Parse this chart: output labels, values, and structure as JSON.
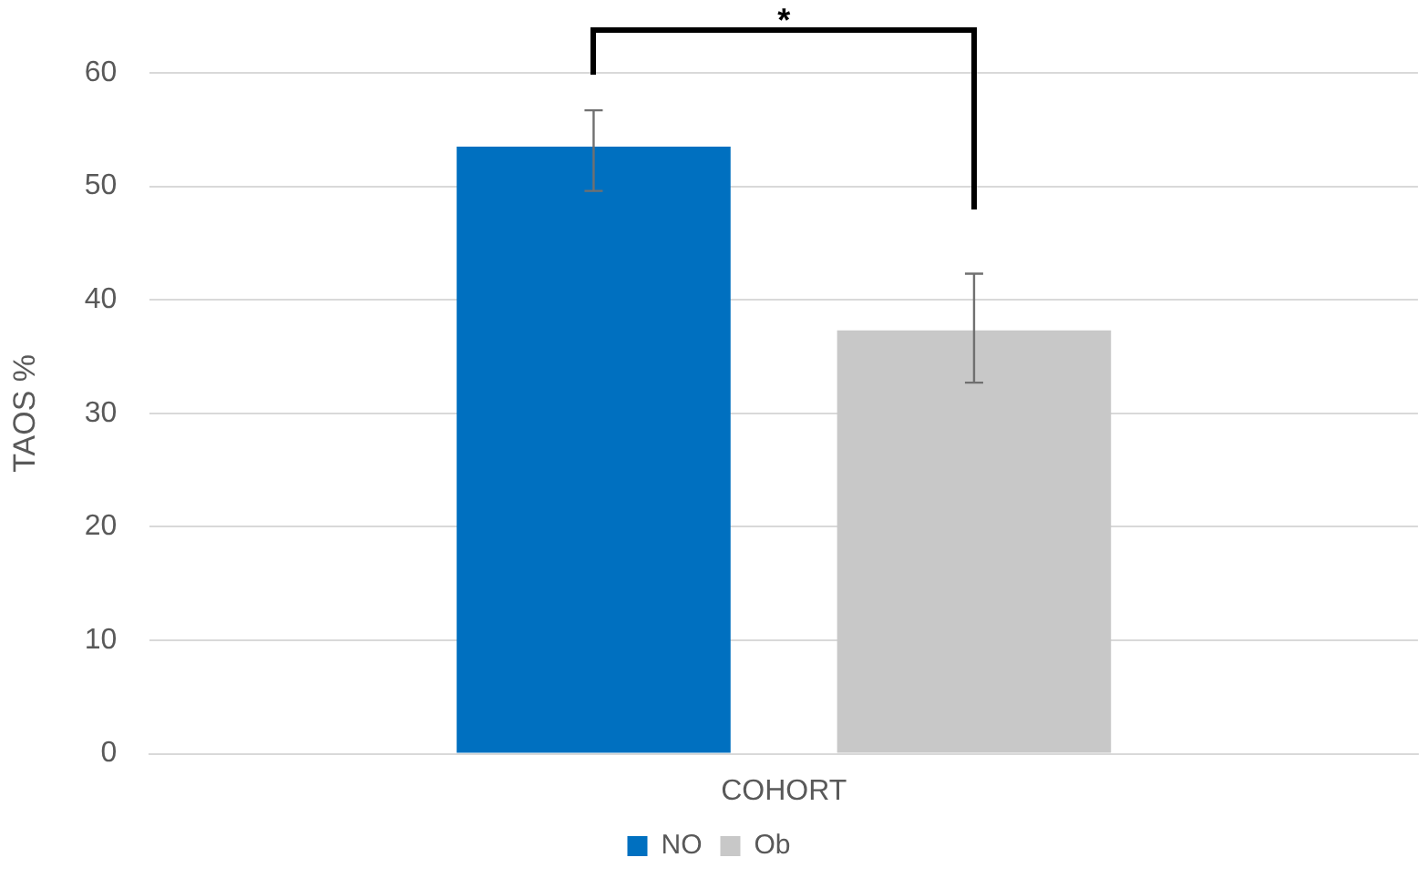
{
  "chart_data": {
    "type": "bar",
    "ylabel": "TAOS %",
    "categories": [
      "COHORT"
    ],
    "series": [
      {
        "name": "NO",
        "color": "#0070c0",
        "values": [
          53.5
        ],
        "errors": [
          [
            49.6,
            56.7
          ]
        ]
      },
      {
        "name": "Ob",
        "color": "#c8c8c8",
        "values": [
          37.3
        ],
        "errors": [
          [
            32.7,
            42.3
          ]
        ]
      }
    ],
    "ylim": [
      0,
      60
    ],
    "yticks": [
      0,
      10,
      20,
      30,
      40,
      50,
      60
    ],
    "grid": "y",
    "legend": "bottom",
    "annotations": [
      "*"
    ]
  }
}
